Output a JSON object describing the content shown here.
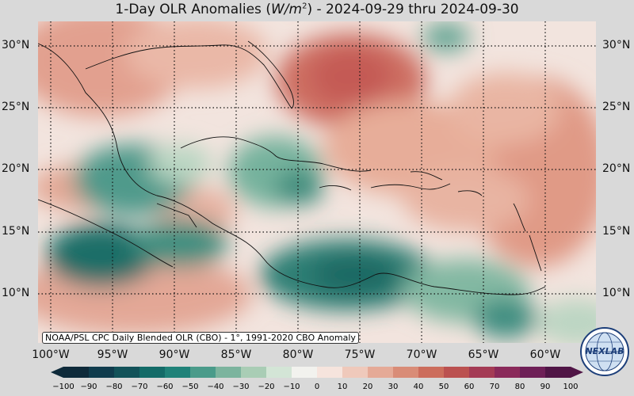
{
  "title": {
    "prefix": "1-Day OLR Anomalies (",
    "unit_main": "W/m",
    "unit_exp": "2",
    "suffix": ") - 2024-09-29 thru 2024-09-30"
  },
  "lat_labels": [
    "30°N",
    "25°N",
    "20°N",
    "15°N",
    "10°N"
  ],
  "lon_labels": [
    "100°W",
    "95°W",
    "90°W",
    "85°W",
    "80°W",
    "75°W",
    "70°W",
    "65°W",
    "60°W"
  ],
  "source_note": "NOAA/PSL CPC Daily Blended OLR (CBO) - 1°, 1991-2020 CBO Anomaly",
  "logo_text": "NEXLAB",
  "colorbar": {
    "ticks": [
      "−100",
      "−90",
      "−80",
      "−70",
      "−60",
      "−50",
      "−40",
      "−30",
      "−20",
      "−10",
      "0",
      "10",
      "20",
      "30",
      "40",
      "50",
      "60",
      "70",
      "80",
      "90",
      "100"
    ],
    "colors": [
      "#0e2a3a",
      "#103c4d",
      "#125259",
      "#136b68",
      "#1f8279",
      "#4a9b8a",
      "#7cb49e",
      "#a9cdb5",
      "#d3e5d6",
      "#f2f2ee",
      "#f6e4dd",
      "#efc9bb",
      "#e5aa97",
      "#d98c77",
      "#cc6d5c",
      "#bb5150",
      "#a43b55",
      "#8a2a5a",
      "#6e1f57",
      "#501546"
    ]
  },
  "extent": {
    "lon_min": -101,
    "lon_max": -56,
    "lat_min": 6,
    "lat_max": 32
  },
  "colors": {
    "negative": "#1b7b72",
    "positive": "#c9645a",
    "neutral": "#f4f1ec"
  }
}
